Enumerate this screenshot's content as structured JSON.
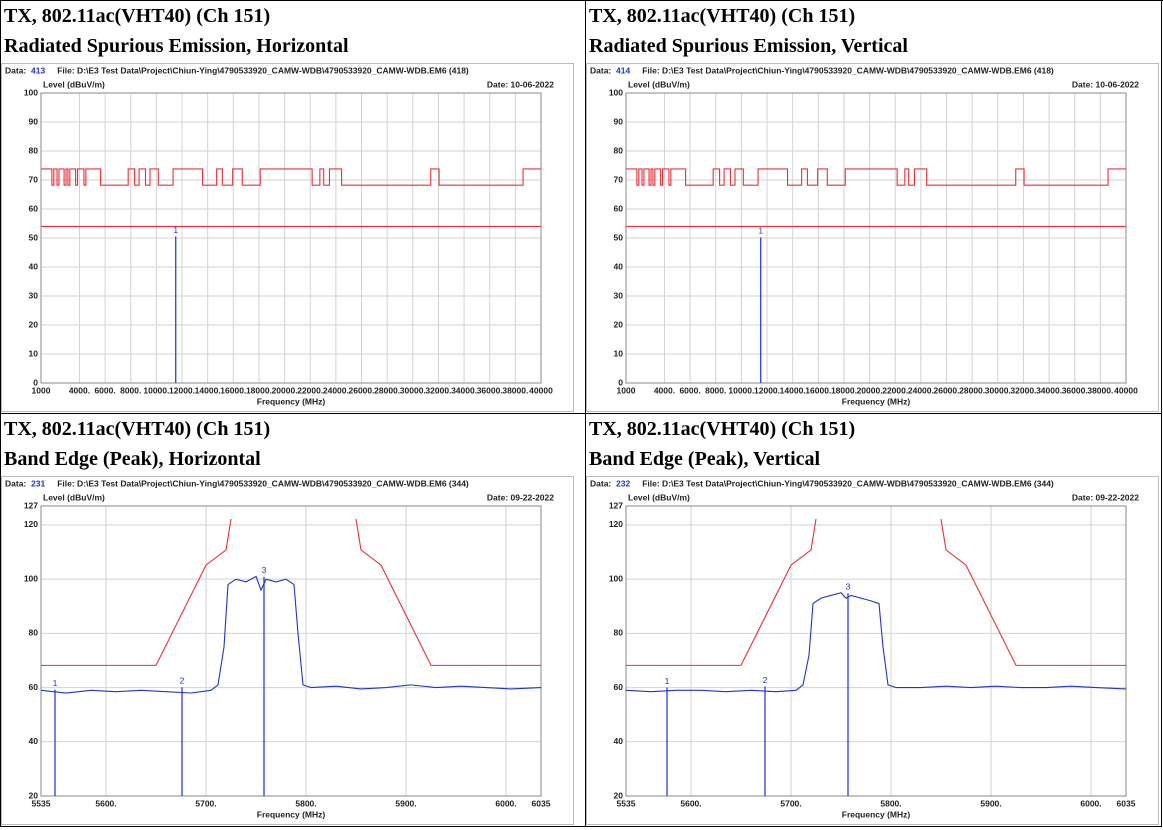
{
  "cells": [
    {
      "heading": [
        "TX, 802.11ac(VHT40) (Ch 151)",
        "Radiated Spurious Emission, Horizontal"
      ],
      "chart": {
        "type": "line",
        "data_label": "Data:",
        "data_id": "413",
        "file": "File: D:\\E3 Test Data\\Project\\Chiun-Ying\\4790533920_CAMW-WDB\\4790533920_CAMW-WDB.EM6 (418)",
        "date": "Date: 10-06-2022",
        "y_label": "Level (dBuV/m)",
        "x_label": "Frequency (MHz)",
        "xlim": [
          1000,
          40000
        ],
        "xticks": [
          1000,
          {
            "value": 4000,
            "label": "4000."
          },
          {
            "value": 6000,
            "label": "6000."
          },
          {
            "value": 8000,
            "label": "8000."
          },
          {
            "value": 10000,
            "label": "10000."
          },
          {
            "value": 12000,
            "label": "12000."
          },
          {
            "value": 14000,
            "label": "14000."
          },
          {
            "value": 16000,
            "label": "16000."
          },
          {
            "value": 18000,
            "label": "18000."
          },
          {
            "value": 20000,
            "label": "20000."
          },
          {
            "value": 22000,
            "label": "22000."
          },
          {
            "value": 24000,
            "label": "24000."
          },
          {
            "value": 26000,
            "label": "26000."
          },
          {
            "value": 28000,
            "label": "28000."
          },
          {
            "value": 30000,
            "label": "30000."
          },
          {
            "value": 32000,
            "label": "32000."
          },
          {
            "value": 34000,
            "label": "34000."
          },
          {
            "value": 36000,
            "label": "36000."
          },
          {
            "value": 38000,
            "label": "38000."
          },
          40000
        ],
        "ylim": [
          0,
          100
        ],
        "yticks": [
          0,
          10,
          20,
          30,
          40,
          50,
          60,
          70,
          80,
          90,
          100
        ],
        "series": [
          {
            "color": "#e8303a",
            "step": true,
            "x": [
              1000,
              1850,
              2000,
              2250,
              2400,
              2800,
              2950,
              3100,
              3250,
              3700,
              3850,
              4350,
              4500,
              5650,
              7800,
              8300,
              8650,
              9150,
              9500,
              10150,
              11300,
              13600,
              14700,
              15150,
              15950,
              16700,
              18100,
              22150,
              22750,
              23050,
              23500,
              24450,
              31400,
              32050,
              38600
            ],
            "values": [
              73.8,
              68.2,
              73.8,
              68.2,
              73.8,
              68.2,
              73.8,
              68.2,
              73.8,
              68.2,
              73.8,
              68.2,
              73.8,
              68.2,
              73.8,
              68.2,
              73.8,
              68.2,
              73.8,
              68.2,
              73.8,
              68.2,
              73.8,
              68.2,
              73.8,
              68.2,
              73.8,
              68.2,
              73.8,
              68.2,
              73.8,
              68.2,
              73.8,
              68.2,
              73.8
            ]
          },
          {
            "color": "#e8303a",
            "x": [
              1000,
              40000
            ],
            "values": [
              54,
              54
            ]
          }
        ],
        "markers": [
          {
            "label": "1",
            "x": 11510,
            "value": 50.5
          }
        ]
      }
    },
    {
      "heading": [
        "TX, 802.11ac(VHT40) (Ch 151)",
        "Radiated Spurious Emission, Vertical"
      ],
      "chart": {
        "type": "line",
        "data_label": "Data:",
        "data_id": "414",
        "file": "File: D:\\E3 Test Data\\Project\\Chiun-Ying\\4790533920_CAMW-WDB\\4790533920_CAMW-WDB.EM6 (418)",
        "date": "Date: 10-06-2022",
        "y_label": "Level (dBuV/m)",
        "x_label": "Frequency (MHz)",
        "xlim": [
          1000,
          40000
        ],
        "xticks": [
          1000,
          {
            "value": 4000,
            "label": "4000."
          },
          {
            "value": 6000,
            "label": "6000."
          },
          {
            "value": 8000,
            "label": "8000."
          },
          {
            "value": 10000,
            "label": "10000."
          },
          {
            "value": 12000,
            "label": "12000."
          },
          {
            "value": 14000,
            "label": "14000."
          },
          {
            "value": 16000,
            "label": "16000."
          },
          {
            "value": 18000,
            "label": "18000."
          },
          {
            "value": 20000,
            "label": "20000."
          },
          {
            "value": 22000,
            "label": "22000."
          },
          {
            "value": 24000,
            "label": "24000."
          },
          {
            "value": 26000,
            "label": "26000."
          },
          {
            "value": 28000,
            "label": "28000."
          },
          {
            "value": 30000,
            "label": "30000."
          },
          {
            "value": 32000,
            "label": "32000."
          },
          {
            "value": 34000,
            "label": "34000."
          },
          {
            "value": 36000,
            "label": "36000."
          },
          {
            "value": 38000,
            "label": "38000."
          },
          40000
        ],
        "ylim": [
          0,
          100
        ],
        "yticks": [
          0,
          10,
          20,
          30,
          40,
          50,
          60,
          70,
          80,
          90,
          100
        ],
        "series": [
          {
            "color": "#e8303a",
            "step": true,
            "x": [
              1000,
              1850,
              2000,
              2250,
              2400,
              2800,
              2950,
              3100,
              3250,
              3700,
              3850,
              4350,
              4500,
              5650,
              7800,
              8300,
              8650,
              9150,
              9500,
              10150,
              11300,
              13600,
              14700,
              15150,
              15950,
              16700,
              18100,
              22150,
              22750,
              23050,
              23500,
              24450,
              31400,
              32050,
              38600
            ],
            "values": [
              73.8,
              68.2,
              73.8,
              68.2,
              73.8,
              68.2,
              73.8,
              68.2,
              73.8,
              68.2,
              73.8,
              68.2,
              73.8,
              68.2,
              73.8,
              68.2,
              73.8,
              68.2,
              73.8,
              68.2,
              73.8,
              68.2,
              73.8,
              68.2,
              73.8,
              68.2,
              73.8,
              68.2,
              73.8,
              68.2,
              73.8,
              68.2,
              73.8,
              68.2,
              73.8
            ]
          },
          {
            "color": "#e8303a",
            "x": [
              1000,
              40000
            ],
            "values": [
              54,
              54
            ]
          }
        ],
        "markers": [
          {
            "label": "1",
            "x": 11510,
            "value": 50.2
          }
        ]
      }
    },
    {
      "heading": [
        "TX, 802.11ac(VHT40) (Ch 151)",
        "Band Edge (Peak), Horizontal"
      ],
      "chart": {
        "type": "line",
        "data_label": "Data:",
        "data_id": "231",
        "file": "File: D:\\E3 Test Data\\Project\\Chiun-Ying\\4790533920_CAMW-WDB\\4790533920_CAMW-WDB.EM6 (344)",
        "date": "Date: 09-22-2022",
        "y_label": "Level (dBuV/m)",
        "x_label": "Frequency (MHz)",
        "xlim": [
          5535,
          6035
        ],
        "xticks": [
          5535,
          {
            "value": 5600,
            "label": "5600."
          },
          {
            "value": 5700,
            "label": "5700."
          },
          {
            "value": 5800,
            "label": "5800."
          },
          {
            "value": 5900,
            "label": "5900."
          },
          {
            "value": 6000,
            "label": "6000."
          },
          6035
        ],
        "ylim": [
          20,
          127
        ],
        "yticks": [
          20,
          40,
          60,
          80,
          100,
          120,
          127
        ],
        "series": [
          {
            "color": "#e8303a",
            "x": [
              5535,
              5650,
              5700,
              5720,
              5725
            ],
            "values": [
              68.2,
              68.2,
              105.2,
              110.8,
              122.2
            ]
          },
          {
            "color": "#e8303a",
            "x": [
              5850,
              5855,
              5875,
              5925,
              6035
            ],
            "values": [
              122.2,
              110.8,
              105.2,
              68.2,
              68.2
            ]
          },
          {
            "color": "#2233cc",
            "x": [
              5535,
              5560,
              5585,
              5610,
              5635,
              5660,
              5685,
              5705,
              5712,
              5718,
              5722,
              5730,
              5740,
              5750,
              5755,
              5760,
              5770,
              5780,
              5788,
              5792,
              5797,
              5805,
              5830,
              5855,
              5880,
              5905,
              5930,
              5955,
              5980,
              6005,
              6035
            ],
            "values": [
              59,
              58,
              59,
              58.5,
              59,
              58.5,
              58,
              59,
              61,
              75,
              98,
              100,
              99,
              101,
              96,
              100,
              99,
              100,
              98,
              80,
              61,
              60,
              60.5,
              59.5,
              60,
              61,
              60,
              60.5,
              60,
              59.5,
              60
            ]
          }
        ],
        "markers": [
          {
            "label": "1",
            "x": 5549,
            "value": 59.2
          },
          {
            "label": "2",
            "x": 5676,
            "value": 60.1
          },
          {
            "label": "3",
            "x": 5758,
            "value": 100.9
          }
        ]
      }
    },
    {
      "heading": [
        "TX, 802.11ac(VHT40) (Ch 151)",
        "Band Edge (Peak), Vertical"
      ],
      "chart": {
        "type": "line",
        "data_label": "Data:",
        "data_id": "232",
        "file": "File: D:\\E3 Test Data\\Project\\Chiun-Ying\\4790533920_CAMW-WDB\\4790533920_CAMW-WDB.EM6 (344)",
        "date": "Date: 09-22-2022",
        "y_label": "Level (dBuV/m)",
        "x_label": "Frequency (MHz)",
        "xlim": [
          5535,
          6035
        ],
        "xticks": [
          5535,
          {
            "value": 5600,
            "label": "5600."
          },
          {
            "value": 5700,
            "label": "5700."
          },
          {
            "value": 5800,
            "label": "5800."
          },
          {
            "value": 5900,
            "label": "5900."
          },
          {
            "value": 6000,
            "label": "6000."
          },
          6035
        ],
        "ylim": [
          20,
          127
        ],
        "yticks": [
          20,
          40,
          60,
          80,
          100,
          120,
          127
        ],
        "series": [
          {
            "color": "#e8303a",
            "x": [
              5535,
              5650,
              5700,
              5720,
              5725
            ],
            "values": [
              68.2,
              68.2,
              105.2,
              110.8,
              122.2
            ]
          },
          {
            "color": "#e8303a",
            "x": [
              5850,
              5855,
              5875,
              5925,
              6035
            ],
            "values": [
              122.2,
              110.8,
              105.2,
              68.2,
              68.2
            ]
          },
          {
            "color": "#2233cc",
            "x": [
              5535,
              5560,
              5585,
              5610,
              5635,
              5660,
              5685,
              5705,
              5712,
              5718,
              5722,
              5730,
              5740,
              5750,
              5755,
              5760,
              5770,
              5780,
              5788,
              5792,
              5797,
              5805,
              5830,
              5855,
              5880,
              5905,
              5930,
              5955,
              5980,
              6005,
              6035
            ],
            "values": [
              59,
              58.5,
              59,
              59,
              58.5,
              59,
              58.5,
              59,
              61,
              72,
              91,
              93,
              94,
              95,
              93,
              94,
              93,
              92,
              91,
              75,
              61,
              60,
              60,
              60.5,
              60,
              60.5,
              60,
              60,
              60.5,
              60,
              59.5
            ]
          }
        ],
        "markers": [
          {
            "label": "1",
            "x": 5576,
            "value": 60.0
          },
          {
            "label": "2",
            "x": 5674,
            "value": 60.4
          },
          {
            "label": "3",
            "x": 5757,
            "value": 94.8
          }
        ]
      }
    }
  ]
}
